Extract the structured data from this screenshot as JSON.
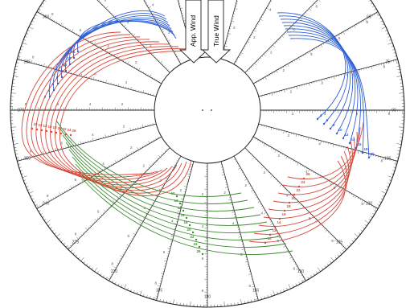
{
  "colors": {
    "background": "#ffffff",
    "grid": "#222222",
    "blue": "#2e5fd6",
    "red": "#d9473a",
    "green": "#3c8b2e"
  },
  "wind": {
    "apparent_label": "App. Wind",
    "true_label": "True Wind"
  },
  "curve_labels": {
    "blue": [
      "2",
      "4",
      "6",
      "8",
      "10",
      "12",
      "14",
      "16",
      "18",
      "20"
    ],
    "red": [
      "10",
      "12",
      "14",
      "16",
      "18",
      "20",
      "22",
      "24",
      "26",
      "28"
    ],
    "green": [
      "10",
      "12",
      "14",
      "16",
      "18",
      "20",
      "22",
      "24",
      "26",
      "28"
    ]
  }
}
